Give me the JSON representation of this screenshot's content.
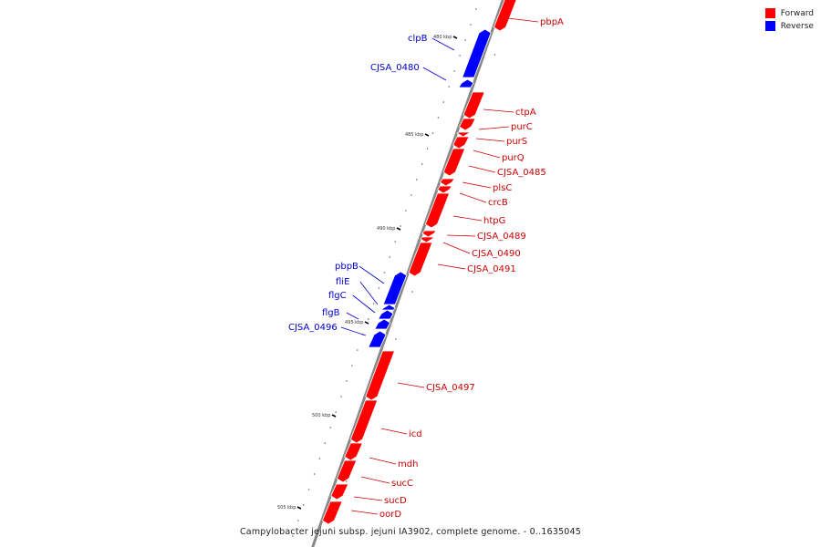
{
  "legend": [
    {
      "label": "Forward",
      "color": "#ff0000"
    },
    {
      "label": "Reverse",
      "color": "#0000ff"
    }
  ],
  "caption": "Campylobacter jejuni subsp. jejuni IA3902, complete genome. - 0..1635045",
  "colors": {
    "forward_fill": "#ff0000",
    "forward_label": "#cc0000",
    "reverse_fill": "#0000ff",
    "reverse_label": "#0000cc",
    "backbone": "#888888"
  },
  "ticks": [
    {
      "label": "480 kbp",
      "kbp": 480
    },
    {
      "label": "485 kbp",
      "kbp": 485
    },
    {
      "label": "490 kbp",
      "kbp": 490
    },
    {
      "label": "495 kbp",
      "kbp": 495
    },
    {
      "label": "500 kbp",
      "kbp": 500
    },
    {
      "label": "505 kbp",
      "kbp": 505
    }
  ],
  "genes": [
    {
      "name": "pbpA",
      "strand": "forward"
    },
    {
      "name": "clpB",
      "strand": "reverse"
    },
    {
      "name": "CJSA_0480",
      "strand": "reverse"
    },
    {
      "name": "ctpA",
      "strand": "forward"
    },
    {
      "name": "purC",
      "strand": "forward"
    },
    {
      "name": "purS",
      "strand": "forward"
    },
    {
      "name": "purQ",
      "strand": "forward"
    },
    {
      "name": "CJSA_0485",
      "strand": "forward"
    },
    {
      "name": "plsC",
      "strand": "forward"
    },
    {
      "name": "crcB",
      "strand": "forward"
    },
    {
      "name": "htpG",
      "strand": "forward"
    },
    {
      "name": "CJSA_0489",
      "strand": "forward"
    },
    {
      "name": "CJSA_0490",
      "strand": "forward"
    },
    {
      "name": "CJSA_0491",
      "strand": "forward"
    },
    {
      "name": "pbpB",
      "strand": "reverse"
    },
    {
      "name": "fliE",
      "strand": "reverse"
    },
    {
      "name": "flgC",
      "strand": "reverse"
    },
    {
      "name": "flgB",
      "strand": "reverse"
    },
    {
      "name": "CJSA_0496",
      "strand": "reverse"
    },
    {
      "name": "CJSA_0497",
      "strand": "forward"
    },
    {
      "name": "icd",
      "strand": "forward"
    },
    {
      "name": "mdh",
      "strand": "forward"
    },
    {
      "name": "sucC",
      "strand": "forward"
    },
    {
      "name": "sucD",
      "strand": "forward"
    },
    {
      "name": "oorD",
      "strand": "forward"
    }
  ]
}
